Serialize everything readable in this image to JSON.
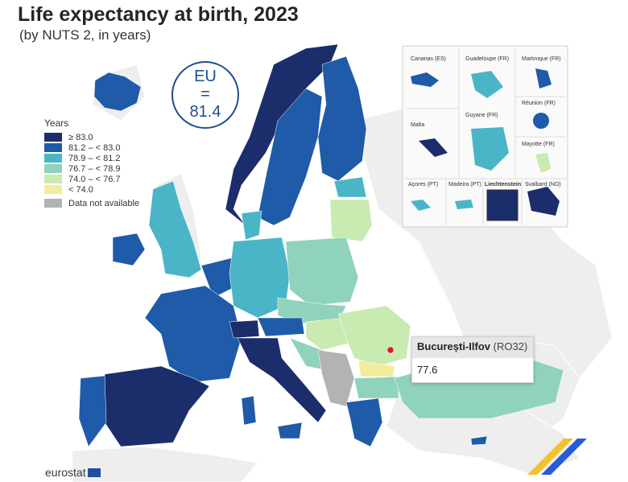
{
  "header": {
    "title": "Life expectancy at birth, 2023",
    "subtitle": "(by NUTS 2, in years)"
  },
  "eu_badge": {
    "label": "EU",
    "eq": "=",
    "value": "81.4"
  },
  "legend": {
    "title": "Years",
    "items": [
      {
        "label": "≥ 83.0",
        "color": "#1b2d6b"
      },
      {
        "label": "81.2 – < 83.0",
        "color": "#1f5ba8"
      },
      {
        "label": "78.9 – < 81.2",
        "color": "#4bb5c8"
      },
      {
        "label": "76.7 – < 78.9",
        "color": "#8fd3bd"
      },
      {
        "label": "74.0 – < 76.7",
        "color": "#c9eab0"
      },
      {
        "label": "< 74.0",
        "color": "#f3ec9c"
      }
    ],
    "na_label": "Data not available",
    "na_color": "#b3b3b3"
  },
  "insets": [
    {
      "name": "Canarias (ES)"
    },
    {
      "name": "Guadeloupe (FR)"
    },
    {
      "name": "Martinique (FR)"
    },
    {
      "name": "Réunion (FR)"
    },
    {
      "name": "Malta"
    },
    {
      "name": "Guyane (FR)"
    },
    {
      "name": "Mayotte (FR)"
    },
    {
      "name": "Açores (PT)"
    },
    {
      "name": "Madeira (PT)"
    },
    {
      "name": "Liechtenstein"
    },
    {
      "name": "Svalbard (NO)"
    }
  ],
  "tooltip": {
    "region": "București-Ilfov",
    "code": "(RO32)",
    "value": "77.6"
  },
  "footer": {
    "logo_text": "eurostat"
  },
  "colors": {
    "background_land": "#eeeeee",
    "sea": "#ffffff",
    "accent": "#1f4e8c"
  }
}
